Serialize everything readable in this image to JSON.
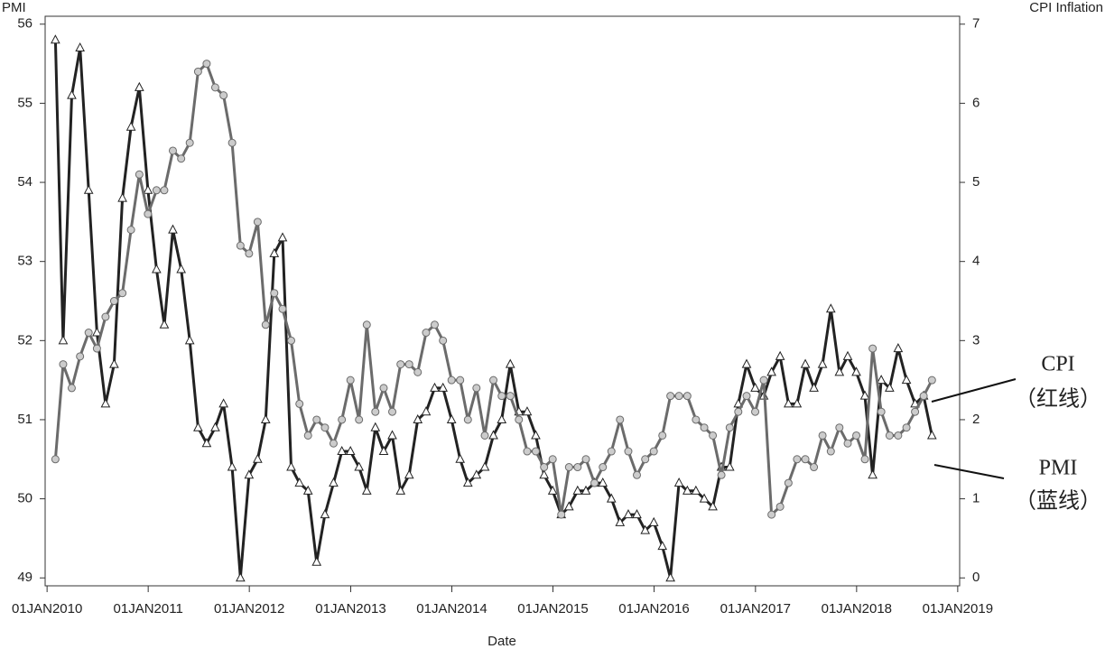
{
  "chart_data": {
    "type": "line",
    "y_label": "PMI",
    "y2_label": "CPI Inflation",
    "x_label": "Date",
    "annotations": [
      "CPI",
      "（红线）",
      "PMI",
      "（蓝线）"
    ],
    "x": [
      "2010-01-31",
      "2010-02-28",
      "2010-03-31",
      "2010-04-30",
      "2010-05-31",
      "2010-06-30",
      "2010-07-31",
      "2010-08-31",
      "2010-09-30",
      "2010-10-31",
      "2010-11-30",
      "2010-12-31",
      "2011-01-31",
      "2011-02-28",
      "2011-03-31",
      "2011-04-30",
      "2011-05-31",
      "2011-06-30",
      "2011-07-31",
      "2011-08-31",
      "2011-09-30",
      "2011-10-31",
      "2011-11-30",
      "2011-12-31",
      "2012-01-31",
      "2012-02-29",
      "2012-03-31",
      "2012-04-30",
      "2012-05-31",
      "2012-06-30",
      "2012-07-31",
      "2012-08-31",
      "2012-09-30",
      "2012-10-31",
      "2012-11-30",
      "2012-12-31",
      "2013-01-31",
      "2013-02-28",
      "2013-03-31",
      "2013-04-30",
      "2013-05-31",
      "2013-06-30",
      "2013-07-31",
      "2013-08-31",
      "2013-09-30",
      "2013-10-31",
      "2013-11-30",
      "2013-12-31",
      "2014-01-31",
      "2014-02-28",
      "2014-03-31",
      "2014-04-30",
      "2014-05-31",
      "2014-06-30",
      "2014-07-31",
      "2014-08-31",
      "2014-09-30",
      "2014-10-31",
      "2014-11-30",
      "2014-12-31",
      "2015-01-31",
      "2015-02-28",
      "2015-03-31",
      "2015-04-30",
      "2015-05-31",
      "2015-06-30",
      "2015-07-31",
      "2015-08-31",
      "2015-09-30",
      "2015-10-31",
      "2015-11-30",
      "2015-12-31",
      "2016-01-31",
      "2016-02-29",
      "2016-03-31",
      "2016-04-30",
      "2016-05-31",
      "2016-06-30",
      "2016-07-31",
      "2016-08-31",
      "2016-09-30",
      "2016-10-31",
      "2016-11-30",
      "2016-12-31",
      "2017-01-31",
      "2017-02-28",
      "2017-03-31",
      "2017-04-30",
      "2017-05-31",
      "2017-06-30",
      "2017-07-31",
      "2017-08-31",
      "2017-09-30",
      "2017-10-31",
      "2017-11-30",
      "2017-12-31",
      "2018-01-31",
      "2018-02-28",
      "2018-03-31",
      "2018-04-30",
      "2018-05-31",
      "2018-06-30",
      "2018-07-31",
      "2018-08-31",
      "2018-09-30"
    ],
    "series": [
      {
        "name": "PMI",
        "color": "#222222",
        "marker": "triangle",
        "values": [
          55.8,
          52.0,
          55.1,
          55.7,
          53.9,
          52.1,
          51.2,
          51.7,
          53.8,
          54.7,
          55.2,
          53.9,
          52.9,
          52.2,
          53.4,
          52.9,
          52.0,
          50.9,
          50.7,
          50.9,
          51.2,
          50.4,
          49.0,
          50.3,
          50.5,
          51.0,
          53.1,
          53.3,
          50.4,
          50.2,
          50.1,
          49.2,
          49.8,
          50.2,
          50.6,
          50.6,
          50.4,
          50.1,
          50.9,
          50.6,
          50.8,
          50.1,
          50.3,
          51.0,
          51.1,
          51.4,
          51.4,
          51.0,
          50.5,
          50.2,
          50.3,
          50.4,
          50.8,
          51.0,
          51.7,
          51.1,
          51.1,
          50.8,
          50.3,
          50.1,
          49.8,
          49.9,
          50.1,
          50.1,
          50.2,
          50.2,
          50.0,
          49.7,
          49.8,
          49.8,
          49.6,
          49.7,
          49.4,
          49.0,
          50.2,
          50.1,
          50.1,
          50.0,
          49.9,
          50.4,
          50.4,
          51.2,
          51.7,
          51.4,
          51.3,
          51.6,
          51.8,
          51.2,
          51.2,
          51.7,
          51.4,
          51.7,
          52.4,
          51.6,
          51.8,
          51.6,
          51.3,
          50.3,
          51.5,
          51.4,
          51.9,
          51.5,
          51.2,
          51.3,
          50.8
        ]
      },
      {
        "name": "CPI Inflation",
        "color": "#6b6b6b",
        "marker": "circle",
        "axis": "y2",
        "values": [
          1.5,
          2.7,
          2.4,
          2.8,
          3.1,
          2.9,
          3.3,
          3.5,
          3.6,
          4.4,
          5.1,
          4.6,
          4.9,
          4.9,
          5.4,
          5.3,
          5.5,
          6.4,
          6.5,
          6.2,
          6.1,
          5.5,
          4.2,
          4.1,
          4.5,
          3.2,
          3.6,
          3.4,
          3.0,
          2.2,
          1.8,
          2.0,
          1.9,
          1.7,
          2.0,
          2.5,
          2.0,
          3.2,
          2.1,
          2.4,
          2.1,
          2.7,
          2.7,
          2.6,
          3.1,
          3.2,
          3.0,
          2.5,
          2.5,
          2.0,
          2.4,
          1.8,
          2.5,
          2.3,
          2.3,
          2.0,
          1.6,
          1.6,
          1.4,
          1.5,
          0.8,
          1.4,
          1.4,
          1.5,
          1.2,
          1.4,
          1.6,
          2.0,
          1.6,
          1.3,
          1.5,
          1.6,
          1.8,
          2.3,
          2.3,
          2.3,
          2.0,
          1.9,
          1.8,
          1.3,
          1.9,
          2.1,
          2.3,
          2.1,
          2.5,
          0.8,
          0.9,
          1.2,
          1.5,
          1.5,
          1.4,
          1.8,
          1.6,
          1.9,
          1.7,
          1.8,
          1.5,
          2.9,
          2.1,
          1.8,
          1.8,
          1.9,
          2.1,
          2.3,
          2.5
        ]
      }
    ],
    "xlim": [
      "2009-12-25",
      "2019-01-08"
    ],
    "xticks": [
      {
        "value": "2010-01-01",
        "label": "01JAN2010"
      },
      {
        "value": "2011-01-01",
        "label": "01JAN2011"
      },
      {
        "value": "2012-01-01",
        "label": "01JAN2012"
      },
      {
        "value": "2013-01-01",
        "label": "01JAN2013"
      },
      {
        "value": "2014-01-01",
        "label": "01JAN2014"
      },
      {
        "value": "2015-01-01",
        "label": "01JAN2015"
      },
      {
        "value": "2016-01-01",
        "label": "01JAN2016"
      },
      {
        "value": "2017-01-01",
        "label": "01JAN2017"
      },
      {
        "value": "2018-01-01",
        "label": "01JAN2018"
      },
      {
        "value": "2019-01-01",
        "label": "01JAN2019"
      }
    ],
    "ylim": [
      48.9,
      56.1
    ],
    "yticks": [
      49,
      50,
      51,
      52,
      53,
      54,
      55,
      56
    ],
    "y2lim": [
      -0.1,
      7.1
    ],
    "y2ticks": [
      0,
      1,
      2,
      3,
      4,
      5,
      6,
      7
    ]
  }
}
